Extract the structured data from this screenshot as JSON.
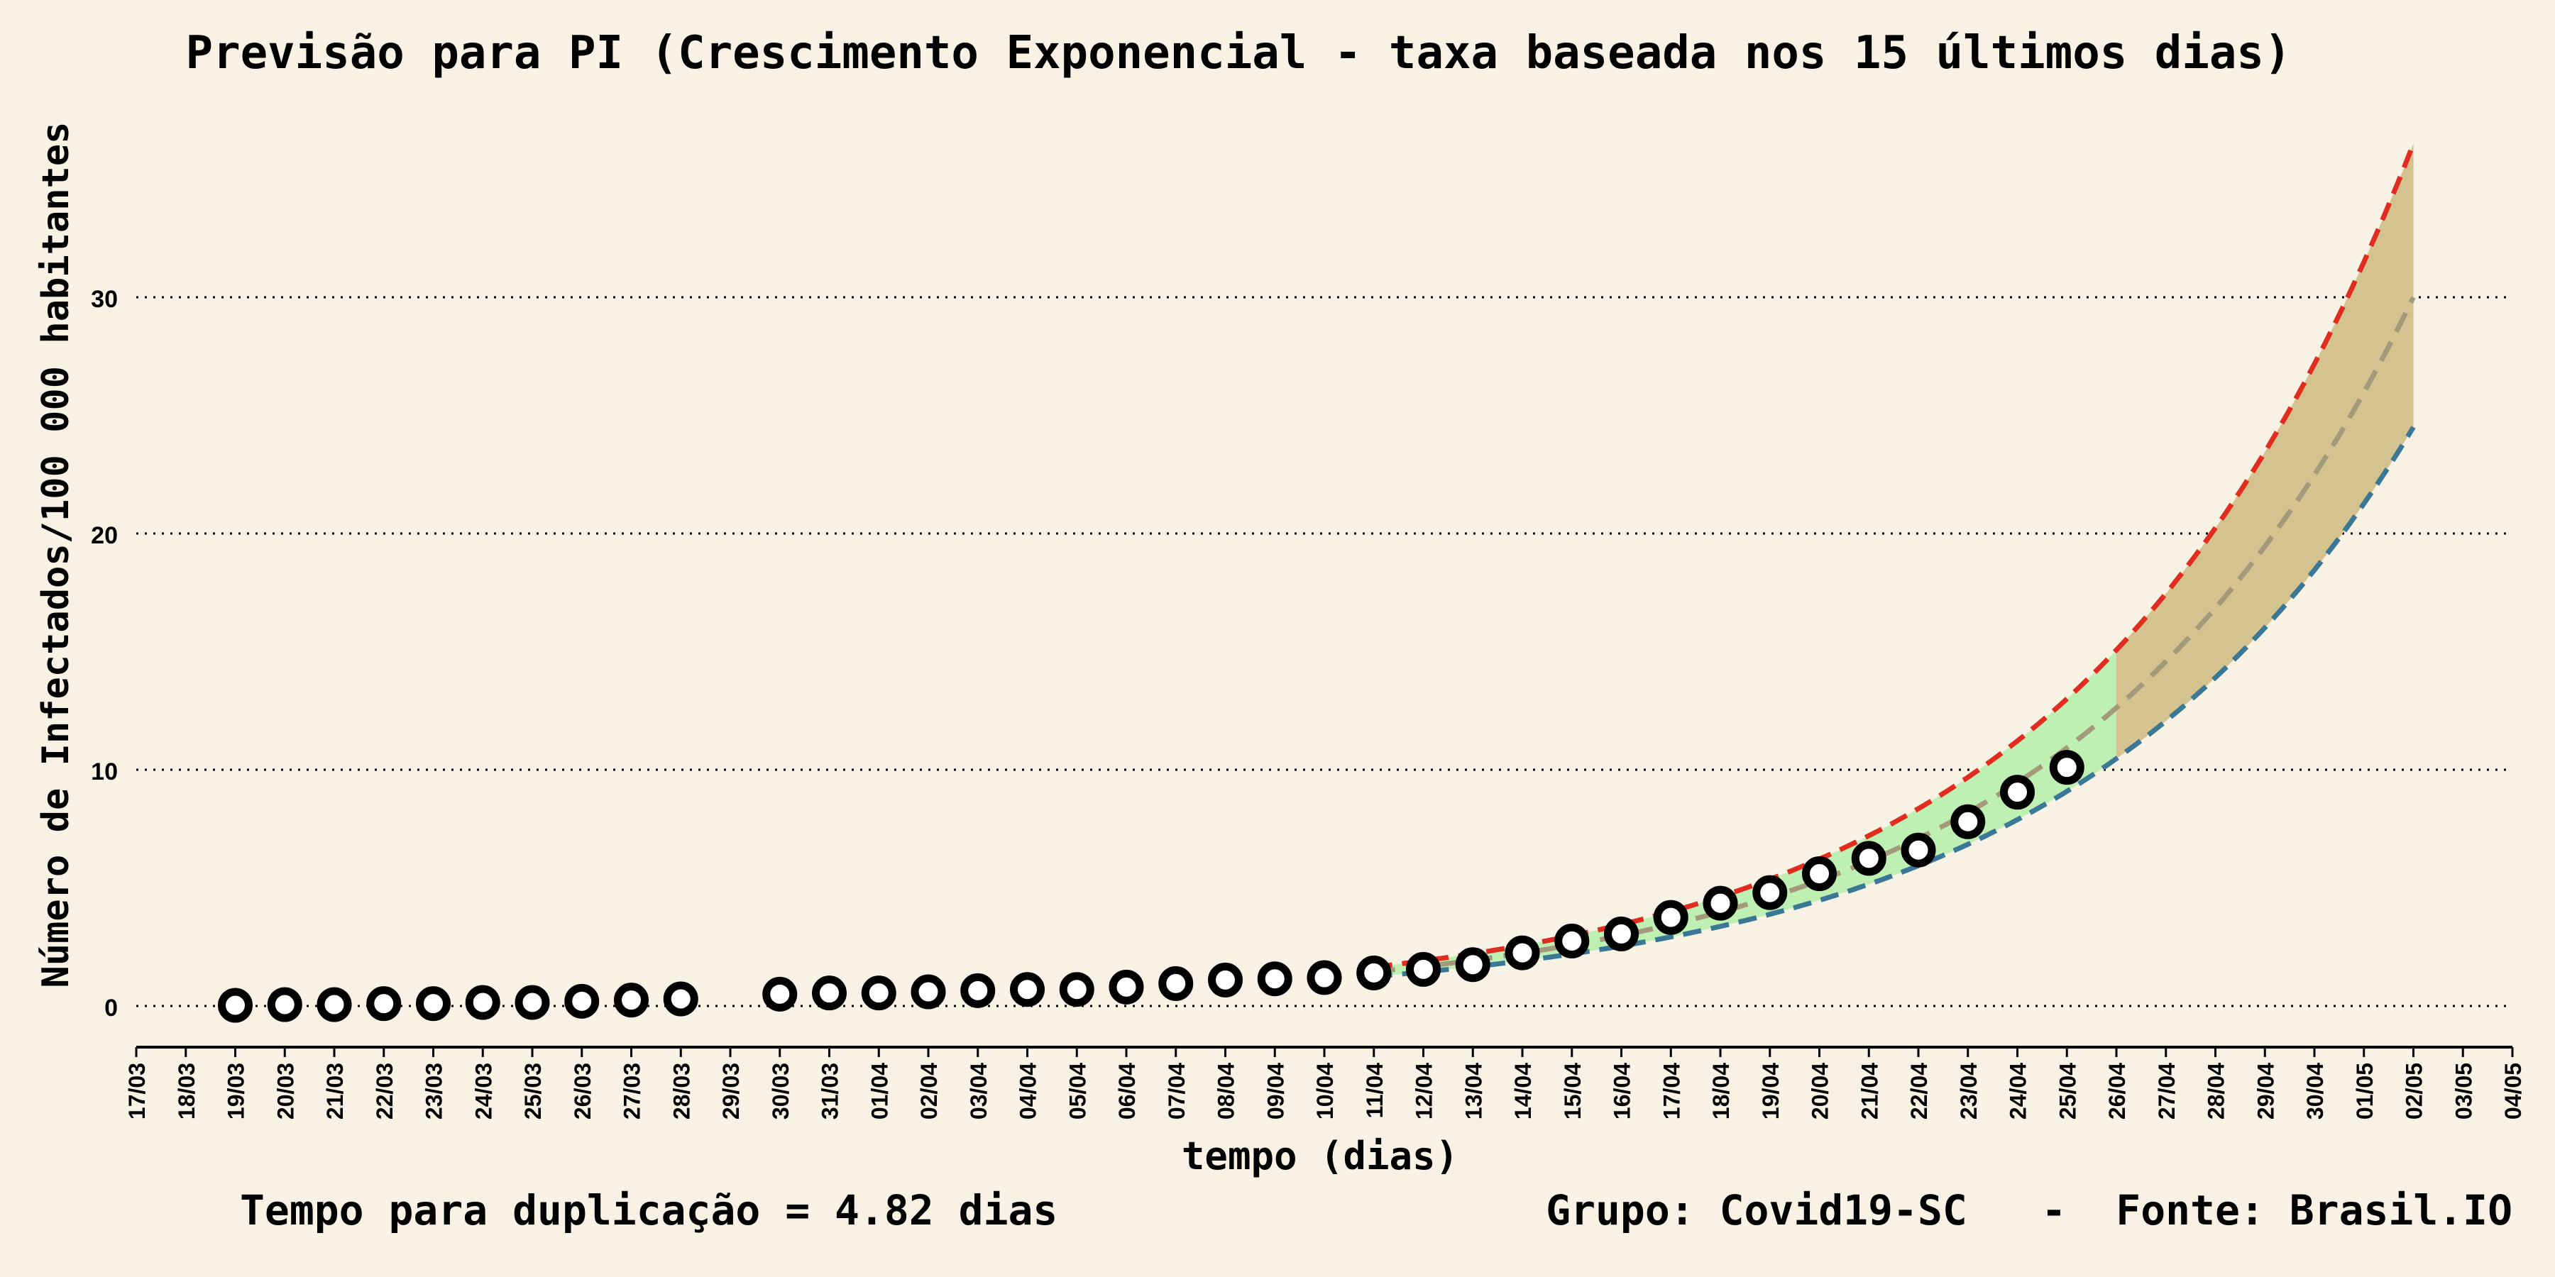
{
  "chart_data": {
    "type": "scatter",
    "title": "Previsão para PI (Crescimento Exponencial - taxa baseada nos 15 últimos dias)",
    "xlabel": "tempo (dias)",
    "ylabel": "Número de Infectados/100 000 habitantes",
    "ylim": [
      -1.5,
      40
    ],
    "yticks": [
      0,
      10,
      20,
      30
    ],
    "grid": "horizontal dotted",
    "x_labels": [
      "17/03",
      "18/03",
      "19/03",
      "20/03",
      "21/03",
      "22/03",
      "23/03",
      "24/03",
      "25/03",
      "26/03",
      "27/03",
      "28/03",
      "29/03",
      "30/03",
      "31/03",
      "01/04",
      "02/04",
      "03/04",
      "04/04",
      "05/04",
      "06/04",
      "07/04",
      "08/04",
      "09/04",
      "10/04",
      "11/04",
      "12/04",
      "13/04",
      "14/04",
      "15/04",
      "16/04",
      "17/04",
      "18/04",
      "19/04",
      "20/04",
      "21/04",
      "22/04",
      "23/04",
      "24/04",
      "25/04",
      "26/04",
      "27/04",
      "28/04",
      "29/04",
      "30/04",
      "01/05",
      "02/05",
      "03/05",
      "04/05"
    ],
    "observed": {
      "x": [
        "19/03",
        "20/03",
        "21/03",
        "22/03",
        "23/03",
        "24/03",
        "25/03",
        "26/03",
        "27/03",
        "28/03",
        "30/03",
        "31/03",
        "01/04",
        "02/04",
        "03/04",
        "04/04",
        "05/04",
        "06/04",
        "07/04",
        "08/04",
        "09/04",
        "10/04",
        "11/04",
        "12/04",
        "13/04",
        "14/04",
        "15/04",
        "16/04",
        "17/04",
        "18/04",
        "19/04",
        "20/04",
        "21/04",
        "22/04",
        "23/04",
        "24/04",
        "25/04"
      ],
      "y": [
        0.03,
        0.06,
        0.06,
        0.1,
        0.1,
        0.15,
        0.15,
        0.2,
        0.25,
        0.3,
        0.5,
        0.55,
        0.55,
        0.6,
        0.65,
        0.7,
        0.7,
        0.8,
        0.95,
        1.1,
        1.15,
        1.2,
        1.4,
        1.55,
        1.75,
        2.25,
        2.75,
        3.05,
        3.75,
        4.35,
        4.8,
        5.6,
        6.25,
        6.6,
        7.8,
        9.05,
        10.1
      ]
    },
    "forecast": {
      "start": "11/04",
      "end": "02/05",
      "central_at_start": 1.45,
      "central_at_end": 30.0,
      "upper_at_start": 1.65,
      "upper_at_end": 36.5,
      "lower_at_start": 1.25,
      "lower_at_end": 24.5,
      "band_split": "26/04",
      "colors": {
        "upper": "#e02d1f",
        "lower": "#3a7896",
        "central": "#a39a7c",
        "band_past": "#bef0b4",
        "band_future": "#d4c28f"
      }
    }
  },
  "footer": {
    "doubling_time": "Tempo para duplicação = 4.82 dias",
    "credits": "Grupo: Covid19-SC   -  Fonte: Brasil.IO"
  }
}
